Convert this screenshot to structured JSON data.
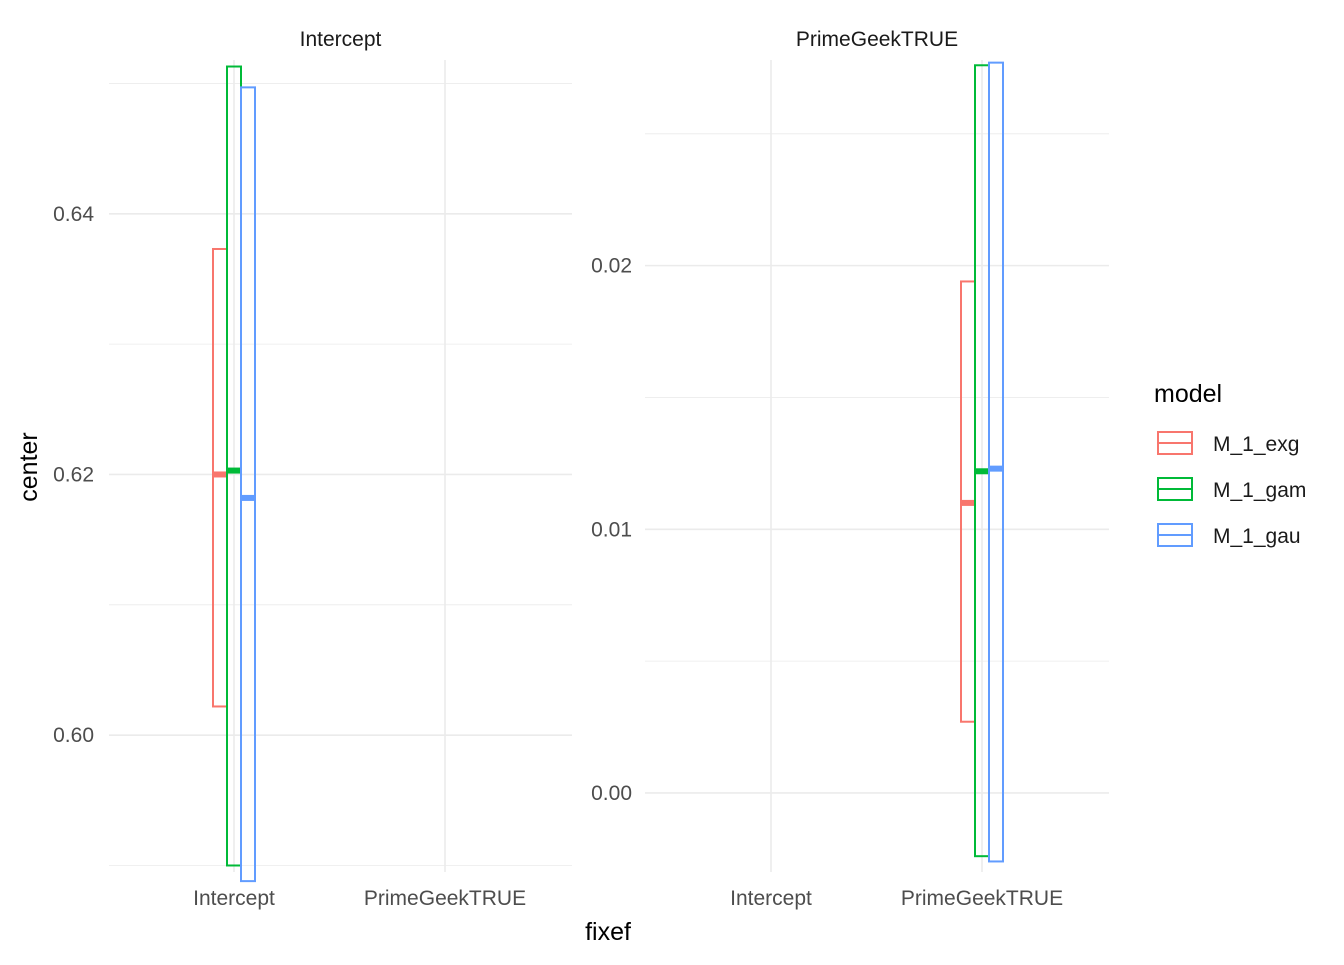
{
  "chart_data": {
    "type": "crossbar",
    "xlabel": "fixef",
    "ylabel": "center",
    "categories": [
      "Intercept",
      "PrimeGeekTRUE"
    ],
    "legend": {
      "title": "model",
      "position": "right",
      "items": [
        {
          "label": "M_1_exg",
          "color": "#F8766D"
        },
        {
          "label": "M_1_gam",
          "color": "#00BA38"
        },
        {
          "label": "M_1_gau",
          "color": "#619CFF"
        }
      ]
    },
    "facets": [
      {
        "strip": "Intercept",
        "ylim": [
          0.5895,
          0.6518
        ],
        "yticks": [
          0.6,
          0.62,
          0.64
        ],
        "ytick_labels": [
          "0.60",
          "0.62",
          "0.64"
        ],
        "y_minor": [
          0.59,
          0.61,
          0.63,
          0.65
        ],
        "bars": [
          {
            "model": "M_1_exg",
            "category": "Intercept",
            "center": 0.62,
            "lower": 0.6022,
            "upper": 0.6373
          },
          {
            "model": "M_1_gam",
            "category": "Intercept",
            "center": 0.6203,
            "lower": 0.59,
            "upper": 0.6513
          },
          {
            "model": "M_1_gau",
            "category": "Intercept",
            "center": 0.6182,
            "lower": 0.5888,
            "upper": 0.6497
          }
        ]
      },
      {
        "strip": "PrimeGeekTRUE",
        "ylim": [
          -0.003,
          0.0278
        ],
        "yticks": [
          0.0,
          0.01,
          0.02
        ],
        "ytick_labels": [
          "0.00",
          "0.01",
          "0.02"
        ],
        "y_minor": [
          0.005,
          0.015,
          0.025
        ],
        "bars": [
          {
            "model": "M_1_exg",
            "category": "PrimeGeekTRUE",
            "center": 0.011,
            "lower": 0.0027,
            "upper": 0.0194
          },
          {
            "model": "M_1_gam",
            "category": "PrimeGeekTRUE",
            "center": 0.0122,
            "lower": -0.0024,
            "upper": 0.0276
          },
          {
            "model": "M_1_gau",
            "category": "PrimeGeekTRUE",
            "center": 0.0123,
            "lower": -0.0026,
            "upper": 0.0277
          }
        ]
      }
    ]
  }
}
